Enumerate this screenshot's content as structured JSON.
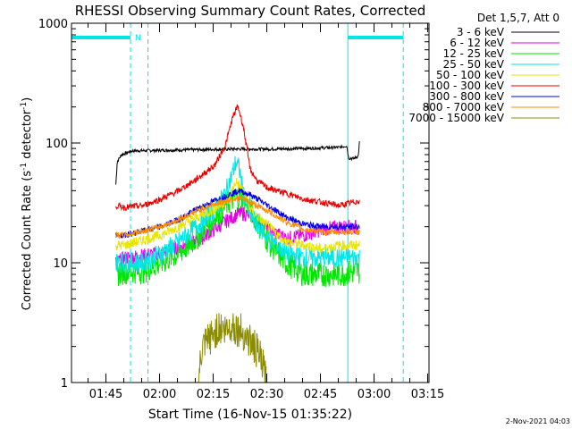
{
  "chart_data": {
    "type": "line",
    "title": "RHESSI Observing Summary Count Rates, Corrected",
    "xlabel": "Start Time (16-Nov-15 01:35:22)",
    "ylabel_main": "Corrected Count Rate (s",
    "ylabel_sup1": "-1",
    "ylabel_mid": " detector",
    "ylabel_sup2": "-1",
    "ylabel_end": ")",
    "xlim_minutes": [
      0,
      100
    ],
    "ylim": [
      1,
      1000
    ],
    "yscale": "log",
    "x_ticks": [
      {
        "label": "01:45",
        "minutes": 9.63
      },
      {
        "label": "02:00",
        "minutes": 24.63
      },
      {
        "label": "02:15",
        "minutes": 39.63
      },
      {
        "label": "02:30",
        "minutes": 54.63
      },
      {
        "label": "02:45",
        "minutes": 69.63
      },
      {
        "label": "03:00",
        "minutes": 84.63
      },
      {
        "label": "03:15",
        "minutes": 99.63
      }
    ],
    "y_ticks": [
      {
        "label": "1",
        "value": 1
      },
      {
        "label": "10",
        "value": 10
      },
      {
        "label": "100",
        "value": 100
      },
      {
        "label": "1000",
        "value": 1000
      }
    ],
    "legend_header": "Det 1,5,7, Att 0",
    "night_flag_label": "N",
    "timestamp": "2-Nov-2021 04:03",
    "orbit_markers_minutes": [
      0,
      16.5,
      21.4,
      77.3,
      92.8
    ],
    "night_bars": [
      {
        "start": 0,
        "end": 16.5
      },
      {
        "start": 77.3,
        "end": 92.8
      }
    ],
    "series": [
      {
        "name": "3 - 6 keV",
        "color": "#000000",
        "x": [
          12.4,
          12.8,
          14,
          17,
          25,
          35,
          45,
          55,
          65,
          75,
          77,
          77.5,
          79,
          80.2,
          80.6
        ],
        "y": [
          45,
          70,
          80,
          86,
          87,
          88,
          89,
          89,
          90,
          92,
          95,
          75,
          74,
          78,
          105
        ]
      },
      {
        "name": "6 - 12 keV",
        "color": "#e600e6",
        "x": [
          12.4,
          15,
          25,
          35,
          40,
          44,
          47,
          50,
          55,
          60,
          65,
          70,
          75,
          80.6
        ],
        "y": [
          10,
          11,
          12,
          15,
          19,
          23,
          26,
          25,
          19,
          16,
          17,
          19,
          20,
          20
        ]
      },
      {
        "name": "12 - 25 keV",
        "color": "#00e600",
        "x": [
          12.4,
          15,
          20,
          25,
          30,
          35,
          40,
          44,
          46,
          48,
          50,
          55,
          60,
          65,
          70,
          75,
          80.6
        ],
        "y": [
          8,
          8.5,
          8.5,
          10,
          12,
          16,
          24,
          32,
          36,
          35,
          28,
          15,
          10,
          8,
          8,
          8,
          8.5
        ]
      },
      {
        "name": "25 - 50 keV",
        "color": "#00e6e6",
        "x": [
          12.4,
          15,
          20,
          25,
          30,
          35,
          40,
          43,
          45,
          46,
          47,
          48,
          50,
          55,
          60,
          65,
          70,
          75,
          80.6
        ],
        "y": [
          10,
          10,
          10,
          12,
          15,
          20,
          27,
          38,
          55,
          70,
          60,
          38,
          25,
          16,
          12,
          11,
          11,
          11,
          11
        ]
      },
      {
        "name": "50 - 100 keV",
        "color": "#e6e600",
        "x": [
          12.4,
          15,
          25,
          30,
          35,
          40,
          44,
          46,
          48,
          50,
          55,
          60,
          65,
          70,
          75,
          80.6
        ],
        "y": [
          14,
          14,
          17,
          20,
          24,
          28,
          34,
          48,
          40,
          28,
          20,
          15,
          14,
          13,
          14,
          14
        ]
      },
      {
        "name": "100 - 300 keV",
        "color": "#e60000",
        "x": [
          12.4,
          15,
          20,
          25,
          30,
          35,
          40,
          43,
          45,
          46.5,
          48,
          50,
          52,
          55,
          60,
          65,
          70,
          75,
          80.6
        ],
        "y": [
          30,
          29,
          30,
          34,
          40,
          50,
          65,
          95,
          160,
          205,
          140,
          60,
          48,
          42,
          38,
          34,
          32,
          30,
          33
        ]
      },
      {
        "name": "300 - 800 keV",
        "color": "#0000e6",
        "x": [
          12.4,
          15,
          25,
          30,
          35,
          40,
          45,
          47,
          50,
          55,
          60,
          65,
          70,
          75,
          80.6
        ],
        "y": [
          17,
          17,
          20,
          23,
          28,
          33,
          38,
          40,
          37,
          30,
          24,
          21,
          20,
          20,
          20
        ]
      },
      {
        "name": "800 - 7000 keV",
        "color": "#ff8c00",
        "x": [
          12.4,
          15,
          25,
          30,
          35,
          40,
          45,
          47,
          50,
          55,
          60,
          65,
          70,
          75,
          80.6
        ],
        "y": [
          17,
          17,
          20,
          23,
          27,
          31,
          34,
          35,
          32,
          27,
          22,
          19,
          18,
          18,
          18
        ]
      },
      {
        "name": "7000 - 15000 keV",
        "color": "#8c8c00",
        "x": [
          35.5,
          36.5,
          38,
          40,
          41.5,
          43,
          45,
          46.5,
          48,
          50,
          52,
          53.5,
          54.5
        ],
        "y": [
          1,
          1.8,
          2.2,
          2.6,
          2.9,
          2.7,
          3,
          2.8,
          2.6,
          2.2,
          1.8,
          1.4,
          1
        ]
      }
    ]
  }
}
